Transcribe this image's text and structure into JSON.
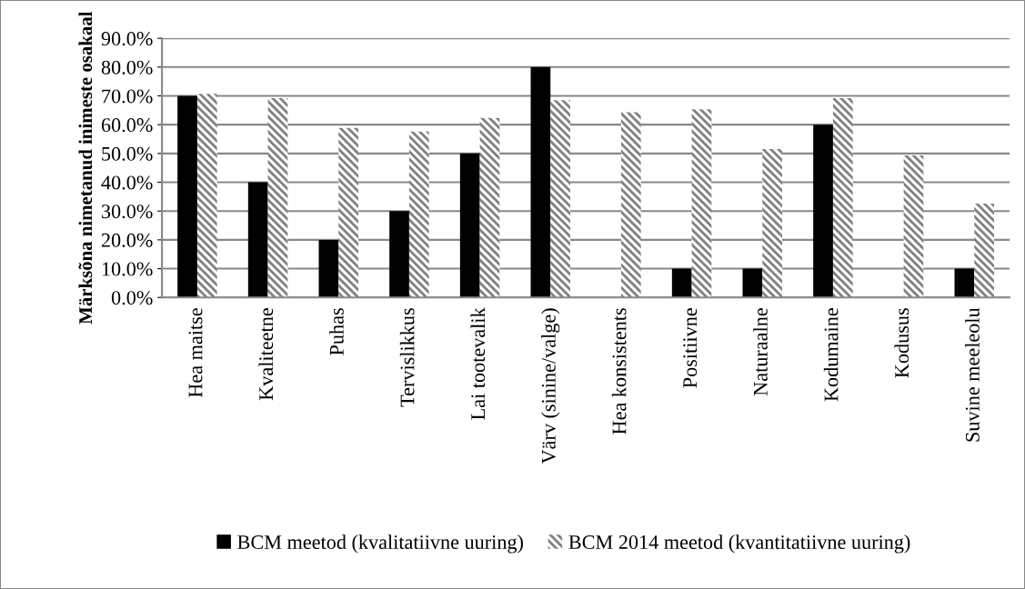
{
  "chart_data": {
    "type": "bar",
    "ylabel": "Märksõna nimetanud inimeste osakaal",
    "categories": [
      "Hea maitse",
      "Kvaliteetne",
      "Puhas",
      "Tervislikkus",
      "Lai tootevalik",
      "Värv (sinine/valge)",
      "Hea konsistents",
      "Positiivne",
      "Naturaalne",
      "Kodumaine",
      "Kodusus",
      "Suvine meeleolu"
    ],
    "series": [
      {
        "name": "BCM meetod (kvalitatiivne uuring)",
        "color": "#000000",
        "values": [
          70,
          40,
          20,
          30,
          50,
          80,
          0,
          10,
          10,
          60,
          0,
          10
        ]
      },
      {
        "name": "BCM 2014 meetod (kvantitatiivne uuring)",
        "color": "#808080",
        "values": [
          70.7,
          69.2,
          58.9,
          57.6,
          62.3,
          68.5,
          64.3,
          65.3,
          51.5,
          69.2,
          49.3,
          32.6
        ]
      }
    ],
    "ylim": [
      0,
      90
    ],
    "yticks": [
      {
        "value": 0,
        "label": "0.0%"
      },
      {
        "value": 10,
        "label": "10.0%"
      },
      {
        "value": 20,
        "label": "20.0%"
      },
      {
        "value": 30,
        "label": "30.0%"
      },
      {
        "value": 40,
        "label": "40.0%"
      },
      {
        "value": 50,
        "label": "50.0%"
      },
      {
        "value": 60,
        "label": "60.0%"
      },
      {
        "value": 70,
        "label": "70.0%"
      },
      {
        "value": 80,
        "label": "80.0%"
      },
      {
        "value": 90,
        "label": "90.0%"
      }
    ],
    "grid": "y",
    "legend": "bottom"
  }
}
